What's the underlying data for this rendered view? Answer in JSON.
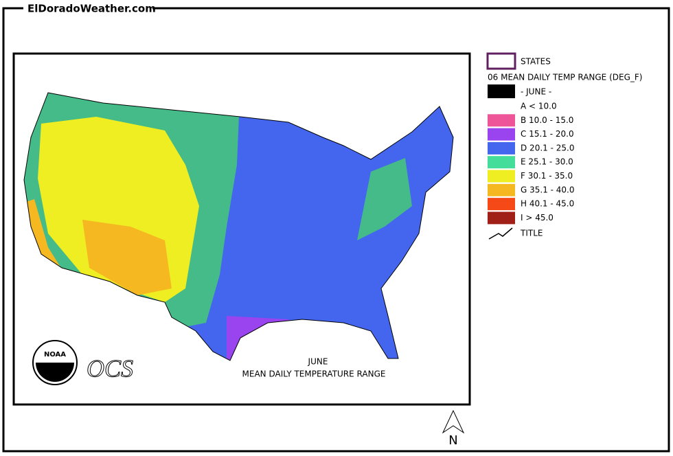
{
  "header": {
    "site": "ElDoradoWeather.com"
  },
  "map": {
    "logo_text": "NOAA",
    "ocs": "OCS",
    "caption_month": "JUNE",
    "caption": "MEAN DAILY TEMPERATURE RANGE",
    "north": "N"
  },
  "legend": {
    "states_label": "STATES",
    "title": "06 MEAN DAILY TEMP RANGE (DEG_F)",
    "month": "- JUNE -",
    "items": [
      {
        "label": "A  < 10.0",
        "color": "#ffffff"
      },
      {
        "label": "B 10.0 - 15.0",
        "color": "#ee5599"
      },
      {
        "label": "C 15.1 - 20.0",
        "color": "#9944ee"
      },
      {
        "label": "D 20.1 - 25.0",
        "color": "#4466ee"
      },
      {
        "label": "E 25.1 - 30.0",
        "color": "#44dd99"
      },
      {
        "label": "F 30.1 - 35.0",
        "color": "#eeee22"
      },
      {
        "label": "G 35.1 - 40.0",
        "color": "#f5b820"
      },
      {
        "label": "H 40.1 - 45.0",
        "color": "#f54a18"
      },
      {
        "label": "I  > 45.0",
        "color": "#a02018"
      }
    ],
    "title_label": "TITLE"
  }
}
